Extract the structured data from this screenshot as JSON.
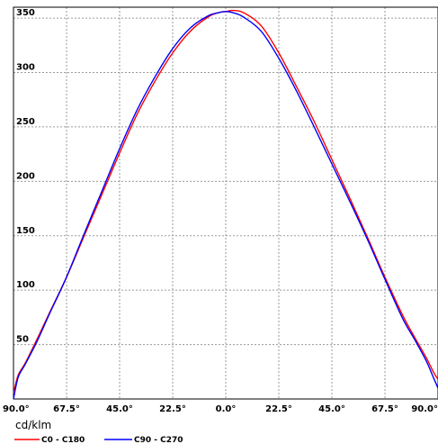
{
  "chart_data": {
    "type": "line",
    "title": "",
    "xlabel": "",
    "ylabel": "cd/klm",
    "x_ticks": [
      "90.0°",
      "67.5°",
      "45.0°",
      "22.5°",
      "0.0°",
      "22.5°",
      "45.0°",
      "67.5°",
      "90.0°"
    ],
    "y_ticks": [
      50,
      100,
      150,
      200,
      250,
      300,
      350
    ],
    "xlim": [
      -90,
      90
    ],
    "ylim": [
      0,
      360
    ],
    "grid": true,
    "legend_position": "bottom-left",
    "series": [
      {
        "name": "C0 - C180",
        "color": "#ff0000",
        "x": [
          -90,
          -88,
          -85,
          -80,
          -75,
          -67.5,
          -60,
          -52.5,
          -45,
          -37.5,
          -30,
          -22.5,
          -15,
          -7.5,
          -3,
          0,
          3,
          7.5,
          15,
          22.5,
          30,
          37.5,
          45,
          52.5,
          60,
          67.5,
          75,
          80,
          85,
          88,
          90
        ],
        "y": [
          5,
          22,
          33,
          55,
          78,
          112,
          150,
          188,
          226,
          262,
          292,
          318,
          338,
          351,
          355,
          356,
          357,
          355,
          343,
          318,
          287,
          255,
          220,
          185,
          149,
          112,
          77,
          57,
          38,
          25,
          18
        ]
      },
      {
        "name": "C90 - C270",
        "color": "#0000ff",
        "x": [
          -90,
          -88,
          -85,
          -80,
          -75,
          -67.5,
          -60,
          -52.5,
          -45,
          -37.5,
          -30,
          -22.5,
          -15,
          -7.5,
          -3,
          0,
          3,
          7.5,
          15,
          22.5,
          30,
          37.5,
          45,
          52.5,
          60,
          67.5,
          75,
          80,
          85,
          88,
          90
        ],
        "y": [
          0,
          20,
          32,
          53,
          77,
          112,
          152,
          191,
          230,
          266,
          296,
          322,
          341,
          352,
          355,
          356,
          355,
          351,
          338,
          313,
          283,
          250,
          216,
          182,
          147,
          110,
          74,
          55,
          35,
          20,
          10
        ]
      }
    ]
  }
}
